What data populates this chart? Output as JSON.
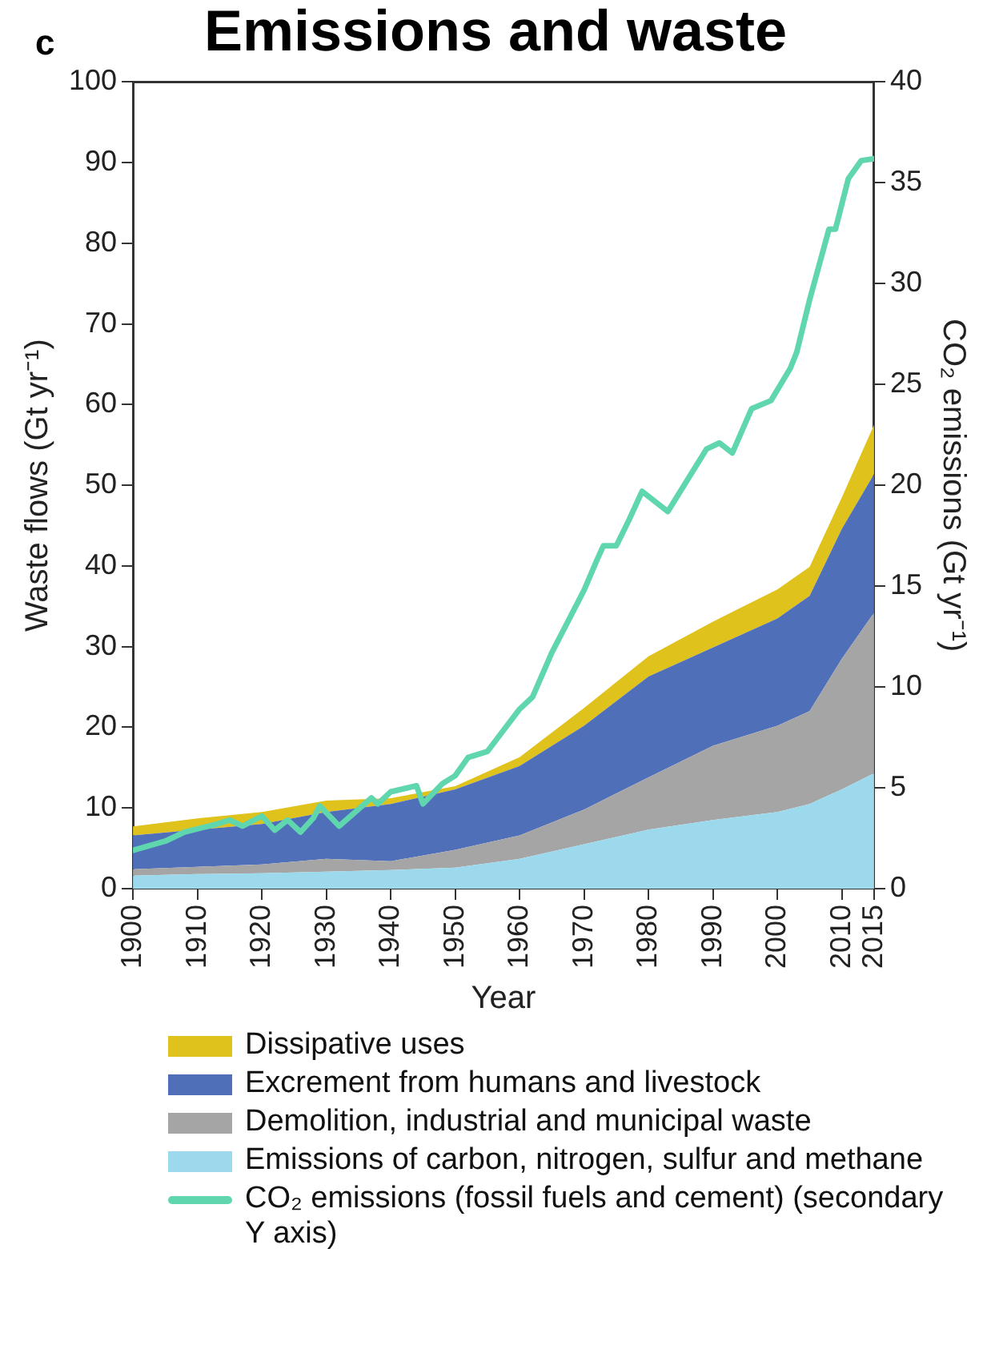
{
  "chart_data": {
    "type": "area",
    "title": "Emissions and waste",
    "annotations": [
      "c"
    ],
    "xlabel": "Year",
    "ylabel": "Waste flows (Gt yr⁻¹)",
    "y2label": "CO₂ emissions (Gt yr⁻¹)",
    "x": [
      1900,
      1910,
      1920,
      1930,
      1940,
      1950,
      1960,
      1970,
      1980,
      1990,
      2000,
      2005,
      2010,
      2015
    ],
    "stacked": true,
    "xlim": [
      1900,
      2015
    ],
    "xticks": [
      1900,
      1910,
      1920,
      1930,
      1940,
      1950,
      1960,
      1970,
      1980,
      1990,
      2000,
      2010,
      2015
    ],
    "ylim": [
      0,
      100
    ],
    "yticks": [
      0,
      10,
      20,
      30,
      40,
      50,
      60,
      70,
      80,
      90,
      100
    ],
    "y2lim": [
      0,
      40
    ],
    "y2ticks": [
      0,
      5,
      10,
      15,
      20,
      25,
      30,
      35,
      40
    ],
    "legend": "bottom",
    "marker": "none",
    "grid": false,
    "series": [
      {
        "name": "Emissions of carbon, nitrogen, sulfur and methane",
        "color": "#9dd9ec",
        "values": [
          1.6,
          1.8,
          1.9,
          2.1,
          2.3,
          2.6,
          3.7,
          5.5,
          7.3,
          8.5,
          9.5,
          10.5,
          12.3,
          14.3
        ]
      },
      {
        "name": "Demolition, industrial  and municipal waste",
        "color": "#a5a5a5",
        "values": [
          0.8,
          0.9,
          1.1,
          1.6,
          1.1,
          2.2,
          2.9,
          4.3,
          6.5,
          9.2,
          10.7,
          11.5,
          16.2,
          19.9
        ]
      },
      {
        "name": "Excrement from humans and livestock",
        "color": "#4f6fb9",
        "values": [
          4.2,
          4.6,
          5.0,
          5.8,
          7.1,
          7.5,
          8.6,
          10.4,
          12.5,
          12.2,
          13.3,
          14.3,
          16.1,
          17.2
        ]
      },
      {
        "name": "Dissipative uses",
        "color": "#e0c21c",
        "values": [
          1.1,
          1.4,
          1.5,
          1.4,
          0.7,
          0.4,
          1.1,
          2.2,
          2.5,
          3.2,
          3.6,
          3.6,
          3.9,
          6.1
        ]
      },
      {
        "name": "CO₂ emissions (fossil fuels and cement) (secondary Y axis)",
        "type": "line",
        "axis": "y2",
        "color": "#5fd6ae",
        "line_style": "solid",
        "x": [
          1900,
          1905,
          1908,
          1913,
          1915,
          1917,
          1920,
          1922,
          1924,
          1926,
          1928,
          1929,
          1932,
          1937,
          1938,
          1940,
          1944,
          1945,
          1948,
          1950,
          1952,
          1955,
          1960,
          1962,
          1965,
          1970,
          1972,
          1973,
          1975,
          1977,
          1979,
          1983,
          1989,
          1991,
          1993,
          1996,
          1999,
          2002,
          2003,
          2005,
          2008,
          2009,
          2011,
          2013,
          2015
        ],
        "values": [
          1.9,
          2.35,
          2.8,
          3.2,
          3.4,
          3.1,
          3.6,
          2.9,
          3.4,
          2.8,
          3.5,
          4.1,
          3.1,
          4.5,
          4.2,
          4.8,
          5.1,
          4.2,
          5.2,
          5.6,
          6.5,
          6.8,
          8.9,
          9.5,
          11.7,
          14.8,
          16.3,
          17.0,
          17.0,
          18.3,
          19.7,
          18.7,
          21.8,
          22.1,
          21.6,
          23.8,
          24.2,
          25.8,
          26.6,
          29.2,
          32.7,
          32.7,
          35.2,
          36.1,
          36.2
        ]
      }
    ]
  }
}
